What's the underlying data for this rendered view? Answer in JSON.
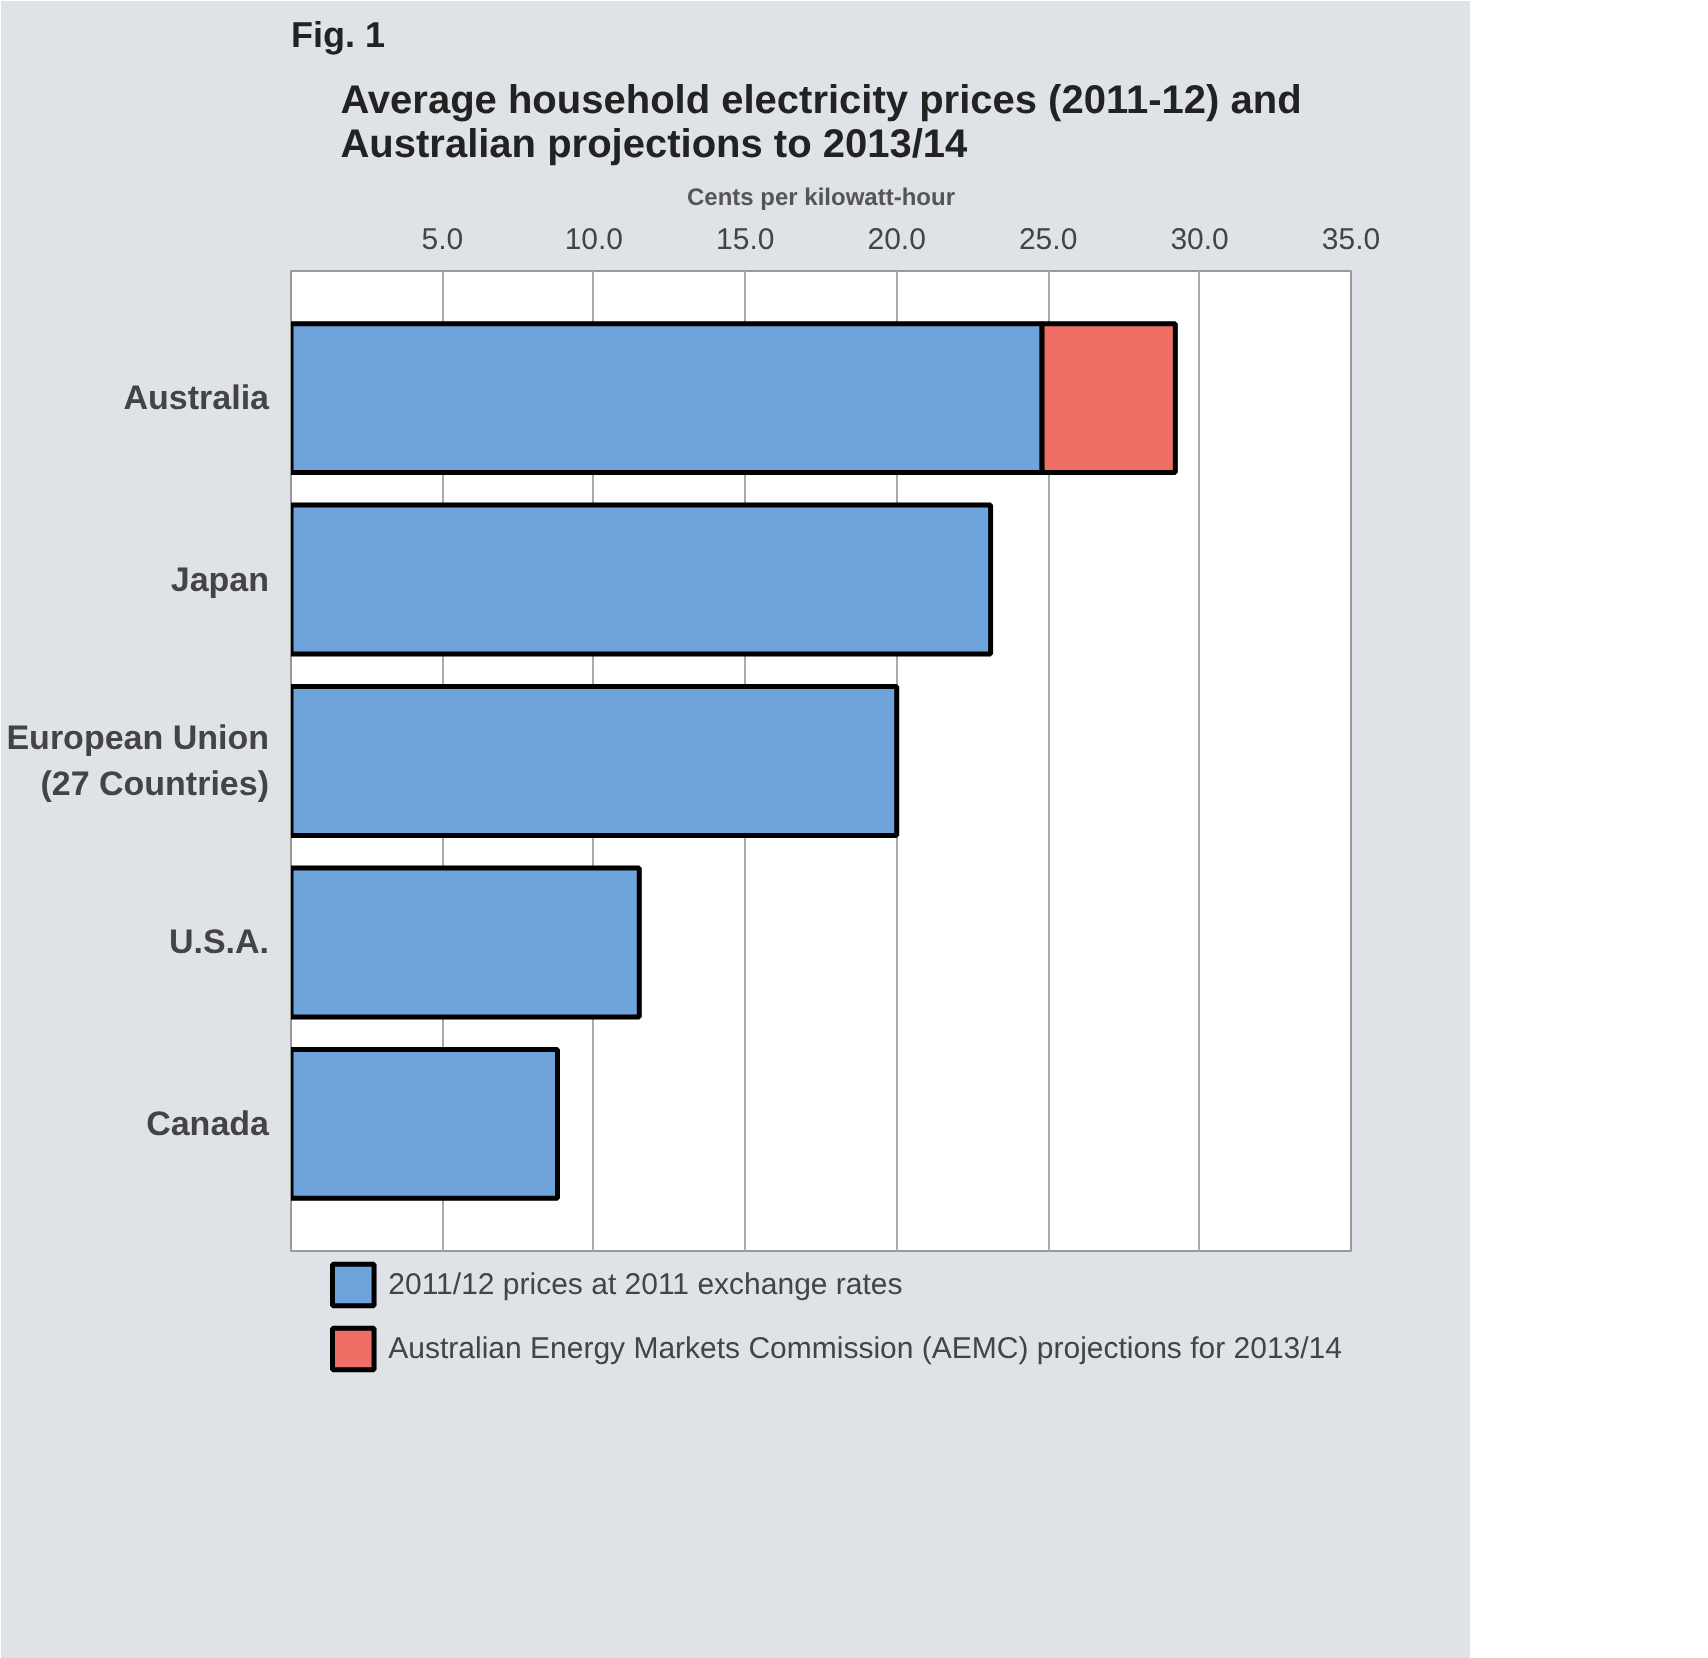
{
  "chart_data": {
    "type": "bar",
    "orientation": "horizontal",
    "stacked": true,
    "title": "Average household electricity prices (2011-12) and\nAustralian projections to 2013/14",
    "xlabel": "Cents per kilowatt-hour",
    "annotations": [
      "Fig. 1"
    ],
    "categories": [
      "Australia",
      "Japan",
      "European Union\n(27 Countries)",
      "U.S.A.",
      "Canada"
    ],
    "series": [
      {
        "name": "2011/12 prices at 2011 exchange rates",
        "color": "#6fa3dc",
        "values": [
          24.8,
          23.1,
          20.0,
          11.5,
          8.8
        ]
      },
      {
        "name": "Australian Energy Markets Commission (AEMC) projections for 2013/14",
        "color": "#ef6f66",
        "values": [
          4.4,
          null,
          null,
          null,
          null
        ]
      }
    ],
    "xlim": [
      0,
      35
    ],
    "xticks": [
      {
        "value": 5,
        "label": "5.0"
      },
      {
        "value": 10,
        "label": "10.0"
      },
      {
        "value": 15,
        "label": "15.0"
      },
      {
        "value": 20,
        "label": "20.0"
      },
      {
        "value": 25,
        "label": "25.0"
      },
      {
        "value": 30,
        "label": "30.0"
      },
      {
        "value": 35,
        "label": "35.0"
      }
    ],
    "grid": "x",
    "legend": "bottom"
  }
}
